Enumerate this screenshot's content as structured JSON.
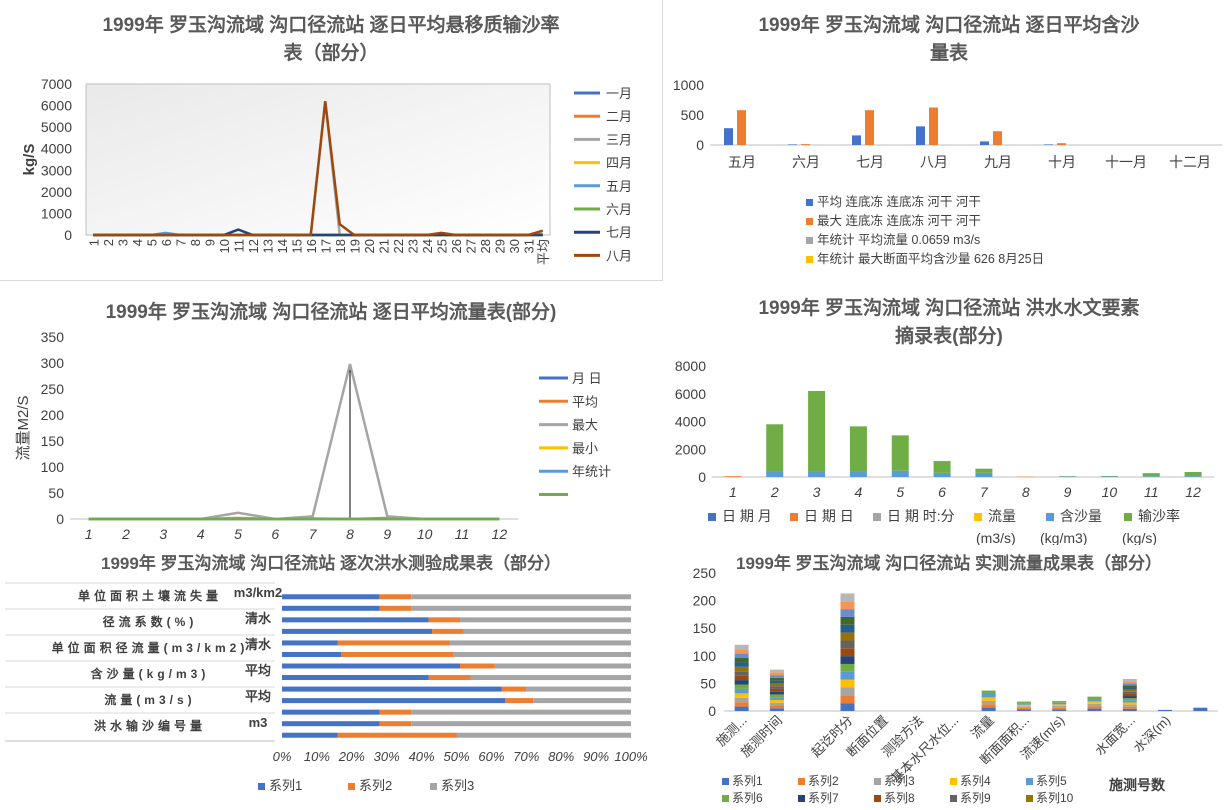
{
  "chart_data": [
    {
      "id": "p1",
      "type": "line",
      "title_line1": "1999年 罗玉沟流域 沟口径流站 逐日平均悬移质输沙率",
      "title_line2": "表（部分）",
      "ylabel": "kg/S",
      "ylim": [
        0,
        7000
      ],
      "yticks": [
        "0",
        "1000",
        "2000",
        "3000",
        "4000",
        "5000",
        "6000",
        "7000"
      ],
      "x": [
        "1",
        "2",
        "3",
        "4",
        "5",
        "6",
        "7",
        "8",
        "9",
        "10",
        "11",
        "12",
        "13",
        "14",
        "15",
        "16",
        "17",
        "18",
        "19",
        "20",
        "21",
        "22",
        "23",
        "24",
        "25",
        "26",
        "27",
        "28",
        "29",
        "30",
        "31",
        "平均"
      ],
      "series": [
        {
          "name": "一月",
          "color": "#4472c4",
          "values": [
            0,
            0,
            0,
            0,
            0,
            0,
            0,
            0,
            0,
            0,
            0,
            0,
            0,
            0,
            0,
            0,
            0,
            0,
            0,
            0,
            0,
            0,
            0,
            0,
            0,
            0,
            0,
            0,
            0,
            0,
            0,
            0
          ]
        },
        {
          "name": "二月",
          "color": "#ed7d31",
          "values": [
            0,
            0,
            0,
            0,
            0,
            0,
            0,
            0,
            0,
            0,
            0,
            0,
            0,
            0,
            0,
            0,
            0,
            0,
            0,
            0,
            0,
            0,
            0,
            0,
            0,
            0,
            0,
            0,
            0,
            0,
            0,
            0
          ]
        },
        {
          "name": "三月",
          "color": "#a5a5a5",
          "values": [
            0,
            0,
            0,
            0,
            0,
            0,
            0,
            0,
            0,
            0,
            0,
            0,
            0,
            0,
            0,
            0,
            6200,
            0,
            0,
            0,
            0,
            0,
            0,
            0,
            0,
            0,
            0,
            0,
            0,
            0,
            0,
            0
          ]
        },
        {
          "name": "四月",
          "color": "#ffc000",
          "values": [
            0,
            0,
            0,
            0,
            0,
            0,
            0,
            0,
            0,
            0,
            0,
            0,
            0,
            0,
            0,
            0,
            0,
            0,
            0,
            0,
            0,
            0,
            0,
            0,
            0,
            0,
            0,
            0,
            0,
            0,
            0,
            0
          ]
        },
        {
          "name": "五月",
          "color": "#5b9bd5",
          "values": [
            0,
            0,
            0,
            0,
            0,
            100,
            0,
            0,
            0,
            0,
            0,
            0,
            0,
            0,
            0,
            0,
            0,
            0,
            0,
            0,
            0,
            0,
            0,
            0,
            0,
            0,
            0,
            0,
            0,
            0,
            0,
            0
          ]
        },
        {
          "name": "六月",
          "color": "#70ad47",
          "values": [
            0,
            0,
            0,
            0,
            0,
            0,
            0,
            0,
            0,
            0,
            0,
            0,
            0,
            0,
            0,
            0,
            0,
            0,
            0,
            0,
            0,
            0,
            0,
            0,
            0,
            0,
            0,
            0,
            0,
            0,
            0,
            50
          ]
        },
        {
          "name": "七月",
          "color": "#264478",
          "values": [
            0,
            0,
            0,
            0,
            0,
            0,
            0,
            0,
            0,
            0,
            250,
            0,
            0,
            0,
            0,
            0,
            0,
            0,
            0,
            0,
            0,
            0,
            0,
            0,
            0,
            0,
            0,
            0,
            0,
            0,
            0,
            0
          ]
        },
        {
          "name": "八月",
          "color": "#9e480e",
          "values": [
            0,
            0,
            0,
            0,
            0,
            0,
            0,
            0,
            0,
            0,
            0,
            0,
            0,
            0,
            0,
            0,
            6200,
            500,
            0,
            0,
            0,
            0,
            0,
            0,
            100,
            0,
            0,
            0,
            0,
            0,
            0,
            200
          ]
        }
      ]
    },
    {
      "id": "p2",
      "type": "bar",
      "title_line1": "1999年 罗玉沟流域 沟口径流站 逐日平均含沙",
      "title_line2": "量表",
      "ylim": [
        0,
        1000
      ],
      "yticks": [
        "0",
        "500",
        "1000"
      ],
      "categories": [
        "五月",
        "六月",
        "七月",
        "八月",
        "九月",
        "十月",
        "十一月",
        "十二月"
      ],
      "series": [
        {
          "name": "平均 连底冻 连底冻 河干 河干",
          "color": "#4472c4",
          "values": [
            280,
            10,
            160,
            310,
            60,
            10,
            0,
            0
          ]
        },
        {
          "name": "最大 连底冻 连底冻 河干 河干",
          "color": "#ed7d31",
          "values": [
            580,
            15,
            580,
            626,
            230,
            30,
            0,
            0
          ]
        }
      ],
      "legend_extra": [
        {
          "name": "年统计 平均流量    0.0659     m3/s",
          "color": "#a5a5a5"
        },
        {
          "name": "年统计 最大断面平均含沙量     626        8月25日",
          "color": "#ffc000"
        }
      ]
    },
    {
      "id": "p3",
      "type": "line",
      "title": "1999年 罗玉沟流域 沟口径流站 逐日平均流量表(部分)",
      "ylabel": "流量M2/S",
      "ylim": [
        0,
        350
      ],
      "yticks": [
        "0",
        "50",
        "100",
        "150",
        "200",
        "250",
        "300",
        "350"
      ],
      "x": [
        "1",
        "2",
        "3",
        "4",
        "5",
        "6",
        "7",
        "8",
        "9",
        "10",
        "11",
        "12"
      ],
      "series": [
        {
          "name": "月          日",
          "color": "#4472c4",
          "values": [
            0,
            0,
            0,
            0,
            0,
            0,
            0,
            0,
            0,
            0,
            0,
            0
          ]
        },
        {
          "name": "平均",
          "color": "#ed7d31",
          "values": [
            0,
            0,
            0,
            0,
            2,
            0,
            1,
            0,
            2,
            0,
            0,
            0
          ]
        },
        {
          "name": "最大",
          "color": "#a5a5a5",
          "values": [
            0,
            0,
            0,
            0,
            12,
            0,
            5,
            298,
            5,
            0,
            0,
            0
          ]
        },
        {
          "name": "最小",
          "color": "#ffc000",
          "values": [
            0,
            0,
            0,
            0,
            0,
            0,
            0,
            0,
            0,
            0,
            0,
            0
          ]
        },
        {
          "name": "年统计",
          "color": "#5b9bd5",
          "values": [
            0,
            0,
            0,
            0,
            0,
            0,
            0,
            0,
            0,
            0,
            0,
            0
          ]
        },
        {
          "name": "",
          "color": "#70ad47",
          "values": [
            0,
            0,
            0,
            0,
            0,
            0,
            0,
            0,
            0,
            0,
            0,
            0
          ]
        }
      ]
    },
    {
      "id": "p4",
      "type": "bar",
      "title_line1": "1999年 罗玉沟流域 沟口径流站 洪水水文要素",
      "title_line2": "摘录表(部分)",
      "ylim": [
        0,
        8000
      ],
      "yticks": [
        "0",
        "2000",
        "4000",
        "6000",
        "8000"
      ],
      "categories": [
        "1",
        "2",
        "3",
        "4",
        "5",
        "6",
        "7",
        "8",
        "9",
        "10",
        "11",
        "12"
      ],
      "stacks": [
        [
          0,
          60,
          0,
          0,
          0,
          0
        ],
        [
          0,
          0,
          0,
          0,
          400,
          3400
        ],
        [
          0,
          0,
          0,
          0,
          400,
          5800
        ],
        [
          0,
          0,
          0,
          0,
          400,
          3250
        ],
        [
          0,
          0,
          0,
          0,
          450,
          2550
        ],
        [
          0,
          0,
          0,
          0,
          300,
          850
        ],
        [
          0,
          0,
          0,
          0,
          300,
          300
        ],
        [
          0,
          30,
          0,
          0,
          0,
          0
        ],
        [
          0,
          0,
          0,
          0,
          30,
          30
        ],
        [
          0,
          0,
          0,
          0,
          30,
          40
        ],
        [
          0,
          0,
          0,
          0,
          50,
          230
        ],
        [
          0,
          0,
          0,
          0,
          60,
          300
        ]
      ],
      "series": [
        {
          "name": "日  期 月",
          "color": "#4472c4"
        },
        {
          "name": "日  期 日",
          "color": "#ed7d31"
        },
        {
          "name": "日  期 时:分",
          "color": "#a5a5a5"
        },
        {
          "name": "流量",
          "name2": "(m3/s)",
          "color": "#ffc000"
        },
        {
          "name": "含沙量",
          "name2": "(kg/m3)",
          "color": "#5b9bd5"
        },
        {
          "name": "输沙率",
          "name2": "(kg/s)",
          "color": "#70ad47"
        }
      ]
    },
    {
      "id": "p5",
      "type": "bar",
      "subtype": "100% stacked horizontal",
      "title": "1999年 罗玉沟流域 沟口径流站 逐次洪水测验成果表（部分）",
      "xticks": [
        "0%",
        "10%",
        "20%",
        "30%",
        "40%",
        "50%",
        "60%",
        "70%",
        "80%",
        "90%",
        "100%"
      ],
      "row_groups": [
        {
          "label": "单位面积土壤流失量",
          "unit": "m3/km2"
        },
        {
          "label": "径流系数(%)",
          "unit": "清水"
        },
        {
          "label": "单位面积径流量(m3/km2)",
          "unit": "清水"
        },
        {
          "label": "含沙量(kg/m3)",
          "unit": "平均"
        },
        {
          "label": "流量(m3/s)",
          "unit": "平均"
        },
        {
          "label": "洪水输沙编号量",
          "unit": "m3"
        }
      ],
      "rows": [
        [
          28,
          9,
          63
        ],
        [
          28,
          9,
          63
        ],
        [
          42,
          9,
          49
        ],
        [
          43,
          9,
          48
        ],
        [
          16,
          32,
          52
        ],
        [
          17,
          32,
          51
        ],
        [
          51,
          10,
          39
        ],
        [
          42,
          12,
          46
        ],
        [
          63,
          7,
          30
        ],
        [
          64,
          8,
          28
        ],
        [
          28,
          9,
          63
        ],
        [
          28,
          9,
          63
        ],
        [
          16,
          34,
          50
        ]
      ],
      "series": [
        {
          "name": "系列1",
          "color": "#4472c4"
        },
        {
          "name": "系列2",
          "color": "#ed7d31"
        },
        {
          "name": "系列3",
          "color": "#a5a5a5"
        }
      ]
    },
    {
      "id": "p6",
      "type": "bar",
      "subtype": "stacked",
      "title": "1999年 罗玉沟流域 沟口径流站 实测流量成果表（部分）",
      "xlabel": "施测号数",
      "ylim": [
        0,
        250
      ],
      "yticks": [
        "0",
        "50",
        "100",
        "150",
        "200",
        "250"
      ],
      "categories": [
        "施测...",
        "施测时间",
        "",
        "起讫时分",
        "断面位置",
        "测验方法",
        "基本水尺水位...",
        "流量",
        "断面面积...",
        "流速(m/s)",
        "",
        "水面宽...",
        "水深(m)",
        ""
      ],
      "totals": [
        120,
        75,
        0,
        213,
        0,
        0,
        0,
        37,
        17,
        18,
        26,
        58,
        2,
        6
      ],
      "series": [
        {
          "name": "系列1",
          "color": "#4472c4"
        },
        {
          "name": "系列2",
          "color": "#ed7d31"
        },
        {
          "name": "系列3",
          "color": "#a5a5a5"
        },
        {
          "name": "系列4",
          "color": "#ffc000"
        },
        {
          "name": "系列5",
          "color": "#5b9bd5"
        },
        {
          "name": "系列6",
          "color": "#70ad47"
        },
        {
          "name": "系列7",
          "color": "#264478"
        },
        {
          "name": "系列8",
          "color": "#9e480e"
        },
        {
          "name": "系列9",
          "color": "#636363"
        },
        {
          "name": "系列10",
          "color": "#997300"
        }
      ]
    }
  ]
}
